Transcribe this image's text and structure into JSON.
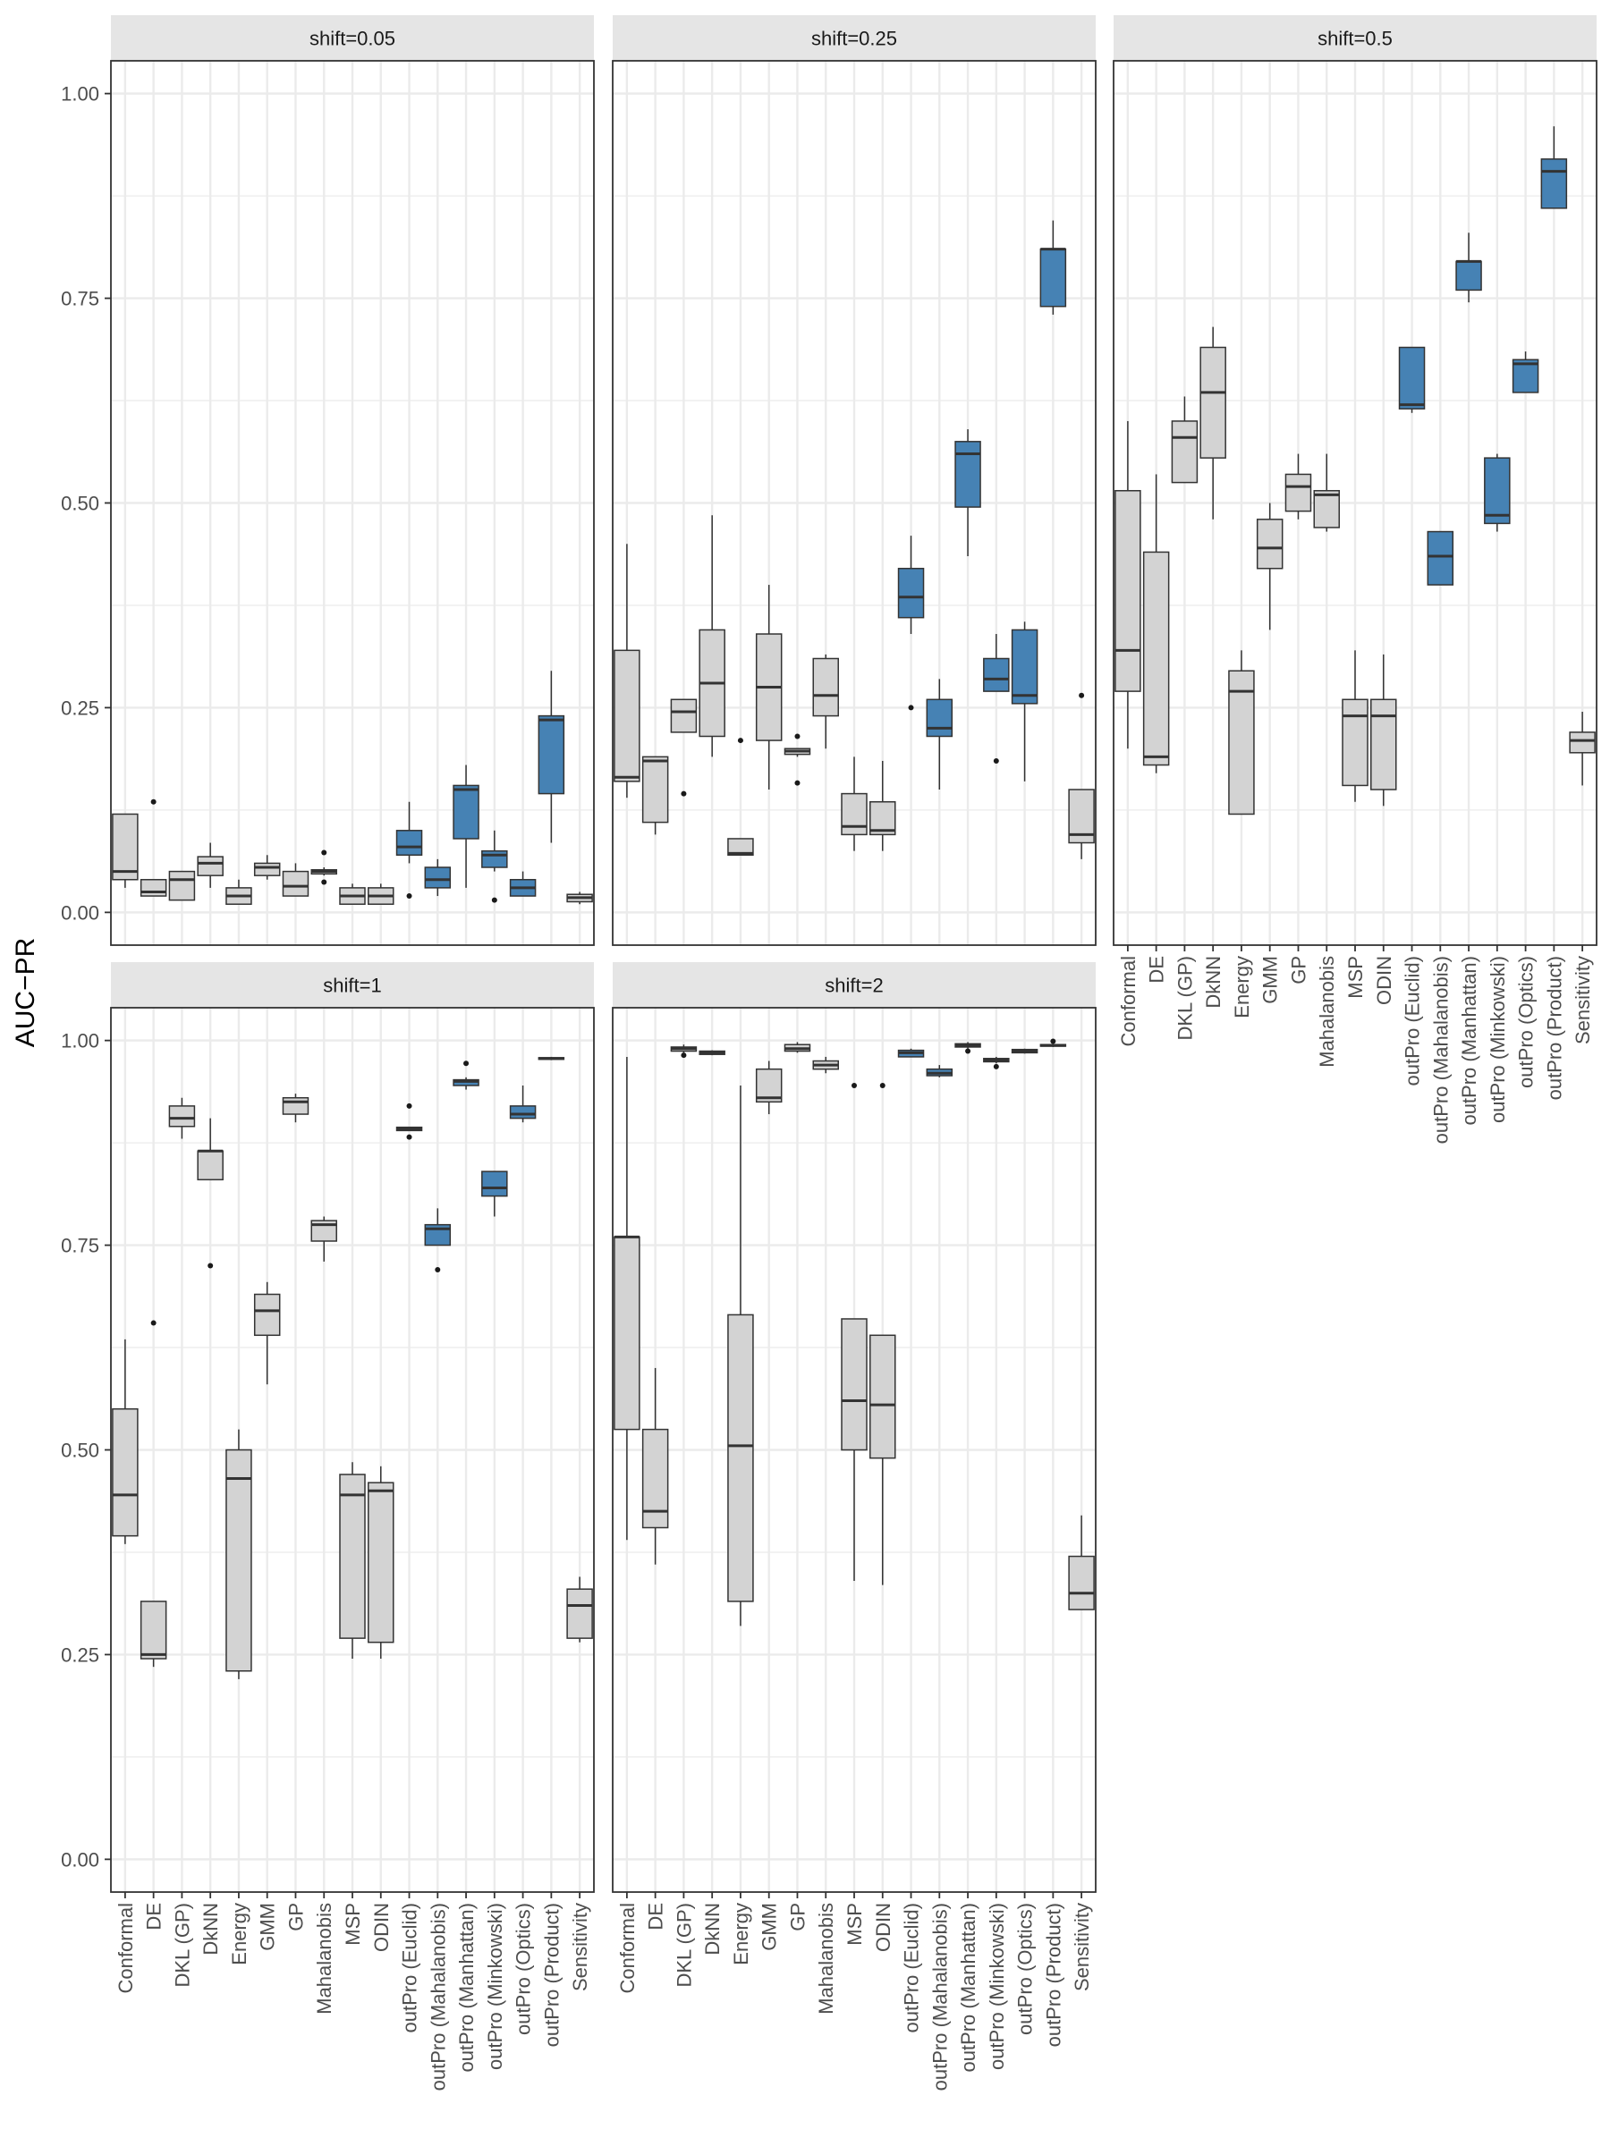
{
  "chart_data": {
    "type": "boxplot",
    "ylabel": "AUC−PR",
    "xlabel": "",
    "ylim": [
      -0.04,
      1.04
    ],
    "yticks": [
      0.0,
      0.25,
      0.5,
      0.75,
      1.0
    ],
    "ytick_labels": [
      "0.00",
      "0.25",
      "0.50",
      "0.75",
      "1.00"
    ],
    "grid": true,
    "colors": {
      "baseline": "#d3d3d3",
      "outpro": "#4682b4",
      "strip": "#e5e5e5",
      "grid": "#ebebeb",
      "border": "#333333"
    },
    "categories": [
      "Conformal",
      "DE",
      "DKL (GP)",
      "DkNN",
      "Energy",
      "GMM",
      "GP",
      "Mahalanobis",
      "MSP",
      "ODIN",
      "outPro (Euclid)",
      "outPro (Mahalanobis)",
      "outPro (Manhattan)",
      "outPro (Minkowski)",
      "outPro (Optics)",
      "outPro (Product)",
      "Sensitivity"
    ],
    "highlighted": [
      "outPro (Euclid)",
      "outPro (Mahalanobis)",
      "outPro (Manhattan)",
      "outPro (Minkowski)",
      "outPro (Optics)",
      "outPro (Product)"
    ],
    "panels": [
      {
        "label": "shift=0.05",
        "boxes": [
          {
            "min": 0.03,
            "q1": 0.04,
            "median": 0.05,
            "q3": 0.12,
            "max": 0.12,
            "outliers": []
          },
          {
            "min": 0.02,
            "q1": 0.02,
            "median": 0.025,
            "q3": 0.04,
            "max": 0.04,
            "outliers": [
              0.135
            ]
          },
          {
            "min": 0.015,
            "q1": 0.015,
            "median": 0.04,
            "q3": 0.05,
            "max": 0.05,
            "outliers": []
          },
          {
            "min": 0.03,
            "q1": 0.045,
            "median": 0.06,
            "q3": 0.068,
            "max": 0.085,
            "outliers": []
          },
          {
            "min": 0.01,
            "q1": 0.01,
            "median": 0.02,
            "q3": 0.03,
            "max": 0.04,
            "outliers": []
          },
          {
            "min": 0.04,
            "q1": 0.045,
            "median": 0.055,
            "q3": 0.06,
            "max": 0.07,
            "outliers": []
          },
          {
            "min": 0.02,
            "q1": 0.02,
            "median": 0.032,
            "q3": 0.05,
            "max": 0.06,
            "outliers": []
          },
          {
            "min": 0.045,
            "q1": 0.047,
            "median": 0.05,
            "q3": 0.052,
            "max": 0.055,
            "outliers": [
              0.073,
              0.037
            ]
          },
          {
            "min": 0.01,
            "q1": 0.01,
            "median": 0.02,
            "q3": 0.03,
            "max": 0.035,
            "outliers": []
          },
          {
            "min": 0.01,
            "q1": 0.01,
            "median": 0.02,
            "q3": 0.03,
            "max": 0.035,
            "outliers": []
          },
          {
            "min": 0.06,
            "q1": 0.07,
            "median": 0.08,
            "q3": 0.1,
            "max": 0.135,
            "outliers": [
              0.02
            ]
          },
          {
            "min": 0.02,
            "q1": 0.03,
            "median": 0.04,
            "q3": 0.055,
            "max": 0.065,
            "outliers": []
          },
          {
            "min": 0.03,
            "q1": 0.09,
            "median": 0.15,
            "q3": 0.155,
            "max": 0.18,
            "outliers": []
          },
          {
            "min": 0.05,
            "q1": 0.055,
            "median": 0.07,
            "q3": 0.075,
            "max": 0.1,
            "outliers": [
              0.015
            ]
          },
          {
            "min": 0.02,
            "q1": 0.02,
            "median": 0.03,
            "q3": 0.04,
            "max": 0.05,
            "outliers": []
          },
          {
            "min": 0.085,
            "q1": 0.145,
            "median": 0.235,
            "q3": 0.24,
            "max": 0.295,
            "outliers": []
          },
          {
            "min": 0.01,
            "q1": 0.013,
            "median": 0.018,
            "q3": 0.022,
            "max": 0.025,
            "outliers": []
          }
        ]
      },
      {
        "label": "shift=0.25",
        "boxes": [
          {
            "min": 0.14,
            "q1": 0.16,
            "median": 0.165,
            "q3": 0.32,
            "max": 0.45,
            "outliers": []
          },
          {
            "min": 0.095,
            "q1": 0.11,
            "median": 0.185,
            "q3": 0.19,
            "max": 0.19,
            "outliers": []
          },
          {
            "min": 0.22,
            "q1": 0.22,
            "median": 0.245,
            "q3": 0.26,
            "max": 0.26,
            "outliers": [
              0.145
            ]
          },
          {
            "min": 0.19,
            "q1": 0.215,
            "median": 0.28,
            "q3": 0.345,
            "max": 0.485,
            "outliers": []
          },
          {
            "min": 0.07,
            "q1": 0.07,
            "median": 0.072,
            "q3": 0.09,
            "max": 0.09,
            "outliers": [
              0.21
            ]
          },
          {
            "min": 0.15,
            "q1": 0.21,
            "median": 0.275,
            "q3": 0.34,
            "max": 0.4,
            "outliers": []
          },
          {
            "min": 0.19,
            "q1": 0.193,
            "median": 0.197,
            "q3": 0.2,
            "max": 0.2,
            "outliers": [
              0.215,
              0.158
            ]
          },
          {
            "min": 0.2,
            "q1": 0.24,
            "median": 0.265,
            "q3": 0.31,
            "max": 0.315,
            "outliers": []
          },
          {
            "min": 0.075,
            "q1": 0.095,
            "median": 0.105,
            "q3": 0.145,
            "max": 0.19,
            "outliers": []
          },
          {
            "min": 0.075,
            "q1": 0.095,
            "median": 0.1,
            "q3": 0.135,
            "max": 0.185,
            "outliers": []
          },
          {
            "min": 0.34,
            "q1": 0.36,
            "median": 0.385,
            "q3": 0.42,
            "max": 0.46,
            "outliers": [
              0.25
            ]
          },
          {
            "min": 0.15,
            "q1": 0.215,
            "median": 0.225,
            "q3": 0.26,
            "max": 0.285,
            "outliers": []
          },
          {
            "min": 0.435,
            "q1": 0.495,
            "median": 0.56,
            "q3": 0.575,
            "max": 0.59,
            "outliers": []
          },
          {
            "min": 0.27,
            "q1": 0.27,
            "median": 0.285,
            "q3": 0.31,
            "max": 0.34,
            "outliers": [
              0.185
            ]
          },
          {
            "min": 0.16,
            "q1": 0.255,
            "median": 0.265,
            "q3": 0.345,
            "max": 0.355,
            "outliers": []
          },
          {
            "min": 0.73,
            "q1": 0.74,
            "median": 0.81,
            "q3": 0.81,
            "max": 0.845,
            "outliers": []
          },
          {
            "min": 0.065,
            "q1": 0.085,
            "median": 0.095,
            "q3": 0.15,
            "max": 0.15,
            "outliers": [
              0.265
            ]
          }
        ]
      },
      {
        "label": "shift=0.5",
        "boxes": [
          {
            "min": 0.2,
            "q1": 0.27,
            "median": 0.32,
            "q3": 0.515,
            "max": 0.6,
            "outliers": []
          },
          {
            "min": 0.17,
            "q1": 0.18,
            "median": 0.19,
            "q3": 0.44,
            "max": 0.535,
            "outliers": []
          },
          {
            "min": 0.525,
            "q1": 0.525,
            "median": 0.58,
            "q3": 0.6,
            "max": 0.63,
            "outliers": []
          },
          {
            "min": 0.48,
            "q1": 0.555,
            "median": 0.635,
            "q3": 0.69,
            "max": 0.715,
            "outliers": []
          },
          {
            "min": 0.12,
            "q1": 0.12,
            "median": 0.27,
            "q3": 0.295,
            "max": 0.32,
            "outliers": []
          },
          {
            "min": 0.345,
            "q1": 0.42,
            "median": 0.445,
            "q3": 0.48,
            "max": 0.5,
            "outliers": []
          },
          {
            "min": 0.48,
            "q1": 0.49,
            "median": 0.52,
            "q3": 0.535,
            "max": 0.56,
            "outliers": []
          },
          {
            "min": 0.465,
            "q1": 0.47,
            "median": 0.51,
            "q3": 0.515,
            "max": 0.56,
            "outliers": []
          },
          {
            "min": 0.135,
            "q1": 0.155,
            "median": 0.24,
            "q3": 0.26,
            "max": 0.32,
            "outliers": []
          },
          {
            "min": 0.13,
            "q1": 0.15,
            "median": 0.24,
            "q3": 0.26,
            "max": 0.315,
            "outliers": []
          },
          {
            "min": 0.61,
            "q1": 0.615,
            "median": 0.62,
            "q3": 0.69,
            "max": 0.69,
            "outliers": []
          },
          {
            "min": 0.4,
            "q1": 0.4,
            "median": 0.435,
            "q3": 0.465,
            "max": 0.465,
            "outliers": []
          },
          {
            "min": 0.745,
            "q1": 0.76,
            "median": 0.795,
            "q3": 0.795,
            "max": 0.83,
            "outliers": []
          },
          {
            "min": 0.465,
            "q1": 0.475,
            "median": 0.485,
            "q3": 0.555,
            "max": 0.56,
            "outliers": []
          },
          {
            "min": 0.635,
            "q1": 0.635,
            "median": 0.67,
            "q3": 0.675,
            "max": 0.685,
            "outliers": []
          },
          {
            "min": 0.86,
            "q1": 0.86,
            "median": 0.905,
            "q3": 0.92,
            "max": 0.96,
            "outliers": []
          },
          {
            "min": 0.155,
            "q1": 0.195,
            "median": 0.21,
            "q3": 0.22,
            "max": 0.245,
            "outliers": []
          }
        ]
      },
      {
        "label": "shift=1",
        "boxes": [
          {
            "min": 0.385,
            "q1": 0.395,
            "median": 0.445,
            "q3": 0.55,
            "max": 0.635,
            "outliers": []
          },
          {
            "min": 0.235,
            "q1": 0.245,
            "median": 0.25,
            "q3": 0.315,
            "max": 0.315,
            "outliers": [
              0.655
            ]
          },
          {
            "min": 0.88,
            "q1": 0.895,
            "median": 0.905,
            "q3": 0.92,
            "max": 0.93,
            "outliers": []
          },
          {
            "min": 0.83,
            "q1": 0.83,
            "median": 0.865,
            "q3": 0.865,
            "max": 0.905,
            "outliers": [
              0.725
            ]
          },
          {
            "min": 0.22,
            "q1": 0.23,
            "median": 0.465,
            "q3": 0.5,
            "max": 0.525,
            "outliers": []
          },
          {
            "min": 0.58,
            "q1": 0.64,
            "median": 0.67,
            "q3": 0.69,
            "max": 0.705,
            "outliers": []
          },
          {
            "min": 0.9,
            "q1": 0.91,
            "median": 0.925,
            "q3": 0.93,
            "max": 0.935,
            "outliers": []
          },
          {
            "min": 0.73,
            "q1": 0.755,
            "median": 0.775,
            "q3": 0.78,
            "max": 0.785,
            "outliers": []
          },
          {
            "min": 0.245,
            "q1": 0.27,
            "median": 0.445,
            "q3": 0.47,
            "max": 0.485,
            "outliers": []
          },
          {
            "min": 0.245,
            "q1": 0.265,
            "median": 0.45,
            "q3": 0.46,
            "max": 0.48,
            "outliers": []
          },
          {
            "min": 0.89,
            "q1": 0.89,
            "median": 0.892,
            "q3": 0.894,
            "max": 0.894,
            "outliers": [
              0.92,
              0.882
            ]
          },
          {
            "min": 0.75,
            "q1": 0.75,
            "median": 0.77,
            "q3": 0.775,
            "max": 0.795,
            "outliers": [
              0.72
            ]
          },
          {
            "min": 0.94,
            "q1": 0.945,
            "median": 0.95,
            "q3": 0.952,
            "max": 0.955,
            "outliers": [
              0.972
            ]
          },
          {
            "min": 0.785,
            "q1": 0.81,
            "median": 0.82,
            "q3": 0.84,
            "max": 0.84,
            "outliers": []
          },
          {
            "min": 0.9,
            "q1": 0.905,
            "median": 0.91,
            "q3": 0.92,
            "max": 0.945,
            "outliers": []
          },
          {
            "min": 0.976,
            "q1": 0.977,
            "median": 0.978,
            "q3": 0.979,
            "max": 0.98,
            "outliers": []
          },
          {
            "min": 0.265,
            "q1": 0.27,
            "median": 0.31,
            "q3": 0.33,
            "max": 0.345,
            "outliers": []
          }
        ]
      },
      {
        "label": "shift=2",
        "boxes": [
          {
            "min": 0.39,
            "q1": 0.525,
            "median": 0.76,
            "q3": 0.76,
            "max": 0.98,
            "outliers": []
          },
          {
            "min": 0.36,
            "q1": 0.405,
            "median": 0.425,
            "q3": 0.525,
            "max": 0.6,
            "outliers": []
          },
          {
            "min": 0.985,
            "q1": 0.987,
            "median": 0.99,
            "q3": 0.992,
            "max": 0.995,
            "outliers": [
              0.982
            ]
          },
          {
            "min": 0.982,
            "q1": 0.983,
            "median": 0.985,
            "q3": 0.987,
            "max": 0.988,
            "outliers": []
          },
          {
            "min": 0.285,
            "q1": 0.315,
            "median": 0.505,
            "q3": 0.665,
            "max": 0.945,
            "outliers": []
          },
          {
            "min": 0.91,
            "q1": 0.925,
            "median": 0.93,
            "q3": 0.965,
            "max": 0.975,
            "outliers": []
          },
          {
            "min": 0.985,
            "q1": 0.987,
            "median": 0.99,
            "q3": 0.995,
            "max": 0.998,
            "outliers": []
          },
          {
            "min": 0.96,
            "q1": 0.965,
            "median": 0.97,
            "q3": 0.975,
            "max": 0.98,
            "outliers": []
          },
          {
            "min": 0.34,
            "q1": 0.5,
            "median": 0.56,
            "q3": 0.66,
            "max": 0.66,
            "outliers": [
              0.945
            ]
          },
          {
            "min": 0.335,
            "q1": 0.49,
            "median": 0.555,
            "q3": 0.64,
            "max": 0.64,
            "outliers": [
              0.945
            ]
          },
          {
            "min": 0.98,
            "q1": 0.98,
            "median": 0.985,
            "q3": 0.988,
            "max": 0.99,
            "outliers": []
          },
          {
            "min": 0.955,
            "q1": 0.957,
            "median": 0.96,
            "q3": 0.965,
            "max": 0.97,
            "outliers": []
          },
          {
            "min": 0.99,
            "q1": 0.992,
            "median": 0.994,
            "q3": 0.996,
            "max": 0.998,
            "outliers": [
              0.987
            ]
          },
          {
            "min": 0.972,
            "q1": 0.974,
            "median": 0.976,
            "q3": 0.978,
            "max": 0.98,
            "outliers": [
              0.968
            ]
          },
          {
            "min": 0.984,
            "q1": 0.985,
            "median": 0.987,
            "q3": 0.989,
            "max": 0.99,
            "outliers": []
          },
          {
            "min": 0.992,
            "q1": 0.993,
            "median": 0.994,
            "q3": 0.995,
            "max": 0.996,
            "outliers": [
              0.999
            ]
          },
          {
            "min": 0.305,
            "q1": 0.305,
            "median": 0.325,
            "q3": 0.37,
            "max": 0.42,
            "outliers": []
          }
        ]
      }
    ]
  }
}
